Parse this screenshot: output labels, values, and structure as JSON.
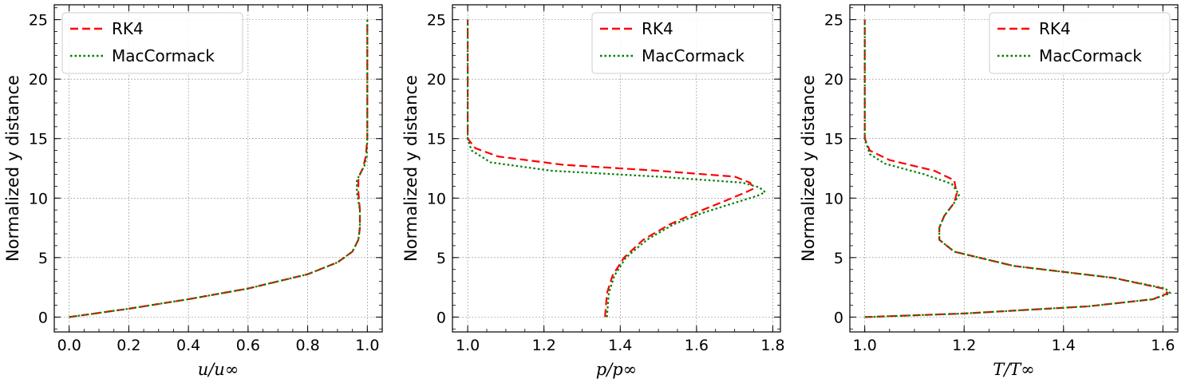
{
  "legend_labels": [
    "RK4",
    "MacCormack"
  ],
  "colors": {
    "RK4": "#ff0000",
    "MacCormack": "#008000",
    "grid": "#888888"
  },
  "chart_data": [
    {
      "type": "line",
      "xlabel": "u/u∞",
      "ylabel": "Normalized y distance",
      "xlim": [
        -0.05,
        1.05
      ],
      "ylim": [
        -1.25,
        26.25
      ],
      "xticks": [
        0.0,
        0.2,
        0.4,
        0.6,
        0.8,
        1.0
      ],
      "xtick_labels": [
        "0.0",
        "0.2",
        "0.4",
        "0.6",
        "0.8",
        "1.0"
      ],
      "yticks": [
        0,
        5,
        10,
        15,
        20,
        25
      ],
      "ytick_labels": [
        "0",
        "5",
        "10",
        "15",
        "20",
        "25"
      ],
      "grid": true,
      "legend_position": "upper-left",
      "series": [
        {
          "name": "RK4",
          "style": "dashed",
          "x": [
            0.0,
            0.2,
            0.4,
            0.6,
            0.8,
            0.9,
            0.95,
            0.97,
            0.975,
            0.975,
            0.97,
            0.97,
            0.975,
            0.985,
            0.995,
            1.0,
            1.0
          ],
          "y": [
            0,
            0.7,
            1.5,
            2.4,
            3.6,
            4.6,
            5.5,
            6.5,
            7.5,
            9.0,
            10.5,
            11.5,
            12.0,
            12.5,
            13.5,
            15,
            25
          ]
        },
        {
          "name": "MacCormack",
          "style": "dotted",
          "x": [
            0.0,
            0.2,
            0.4,
            0.6,
            0.8,
            0.9,
            0.95,
            0.97,
            0.975,
            0.975,
            0.965,
            0.965,
            0.975,
            0.99,
            0.998,
            1.0,
            1.0
          ],
          "y": [
            0,
            0.7,
            1.5,
            2.4,
            3.6,
            4.6,
            5.5,
            6.5,
            7.5,
            9.0,
            10.5,
            11.5,
            12.0,
            12.7,
            13.5,
            15,
            25
          ]
        }
      ]
    },
    {
      "type": "line",
      "xlabel": "p/p∞",
      "ylabel": "Normalized y distance",
      "xlim": [
        0.96,
        1.82
      ],
      "ylim": [
        -1.25,
        26.25
      ],
      "xticks": [
        1.0,
        1.2,
        1.4,
        1.6,
        1.8
      ],
      "xtick_labels": [
        "1.0",
        "1.2",
        "1.4",
        "1.6",
        "1.8"
      ],
      "yticks": [
        0,
        5,
        10,
        15,
        20,
        25
      ],
      "ytick_labels": [
        "0",
        "5",
        "10",
        "15",
        "20",
        "25"
      ],
      "grid": true,
      "legend_position": "upper-right",
      "series": [
        {
          "name": "RK4",
          "style": "dashed",
          "x": [
            1.36,
            1.365,
            1.38,
            1.41,
            1.46,
            1.53,
            1.6,
            1.67,
            1.73,
            1.75,
            1.74,
            1.7,
            1.5,
            1.25,
            1.08,
            1.02,
            1.0,
            1.0
          ],
          "y": [
            0,
            2,
            3.5,
            5,
            6.5,
            7.8,
            8.8,
            9.7,
            10.5,
            10.8,
            11.3,
            11.8,
            12.3,
            12.8,
            13.5,
            14.2,
            15,
            25
          ]
        },
        {
          "name": "MacCormack",
          "style": "dotted",
          "x": [
            1.365,
            1.37,
            1.385,
            1.415,
            1.47,
            1.54,
            1.62,
            1.7,
            1.76,
            1.78,
            1.765,
            1.72,
            1.5,
            1.22,
            1.06,
            1.01,
            1.0,
            1.0
          ],
          "y": [
            0,
            2,
            3.5,
            5,
            6.5,
            7.8,
            8.8,
            9.6,
            10.2,
            10.5,
            10.9,
            11.3,
            11.8,
            12.3,
            13.0,
            14.0,
            15,
            25
          ]
        }
      ]
    },
    {
      "type": "line",
      "xlabel": "T/T∞",
      "ylabel": "Normalized y distance",
      "xlim": [
        0.97,
        1.63
      ],
      "ylim": [
        -1.25,
        26.25
      ],
      "xticks": [
        1.0,
        1.2,
        1.4,
        1.6
      ],
      "xtick_labels": [
        "1.0",
        "1.2",
        "1.4",
        "1.6"
      ],
      "yticks": [
        0,
        5,
        10,
        15,
        20,
        25
      ],
      "ytick_labels": [
        "0",
        "5",
        "10",
        "15",
        "20",
        "25"
      ],
      "grid": true,
      "legend_position": "upper-right",
      "series": [
        {
          "name": "RK4",
          "style": "dashed",
          "x": [
            1.0,
            1.2,
            1.45,
            1.58,
            1.61,
            1.6,
            1.5,
            1.3,
            1.18,
            1.15,
            1.15,
            1.16,
            1.18,
            1.185,
            1.18,
            1.14,
            1.05,
            1.01,
            1.0,
            1.0
          ],
          "y": [
            0,
            0.3,
            0.9,
            1.5,
            2.0,
            2.4,
            3.3,
            4.3,
            5.5,
            6.5,
            7.5,
            8.5,
            9.6,
            10.4,
            11.5,
            12.3,
            13.2,
            14.0,
            15,
            25
          ]
        },
        {
          "name": "MacCormack",
          "style": "dotted",
          "x": [
            1.0,
            1.2,
            1.45,
            1.58,
            1.615,
            1.605,
            1.5,
            1.3,
            1.18,
            1.15,
            1.15,
            1.16,
            1.18,
            1.19,
            1.175,
            1.12,
            1.04,
            1.01,
            1.0,
            1.0
          ],
          "y": [
            0,
            0.3,
            0.9,
            1.5,
            2.0,
            2.4,
            3.3,
            4.3,
            5.5,
            6.5,
            7.5,
            8.5,
            9.6,
            10.3,
            11.2,
            12.0,
            12.9,
            13.7,
            15,
            25
          ]
        }
      ]
    }
  ]
}
